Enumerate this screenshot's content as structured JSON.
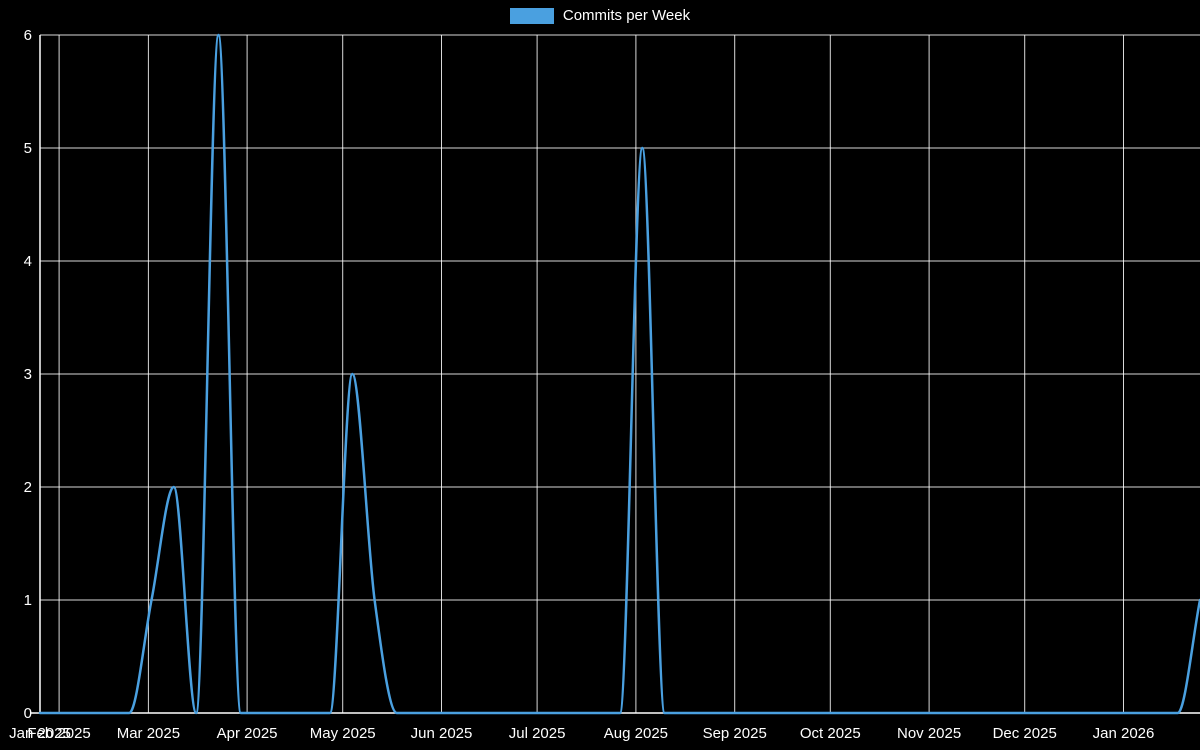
{
  "colors": {
    "background": "#000000",
    "grid": "#ffffff",
    "axis": "#ffffff",
    "text": "#ffffff",
    "line": "#4aa0e0"
  },
  "legend": {
    "label": "Commits per Week",
    "swatch_color": "#4aa0e0",
    "position": "top"
  },
  "chart_data": {
    "type": "line",
    "title": "",
    "legend_entries": [
      "Commits per Week"
    ],
    "xlabel": "",
    "ylabel": "",
    "grid": true,
    "ylim": [
      0,
      6
    ],
    "y_ticks": [
      0,
      1,
      2,
      3,
      4,
      5,
      6
    ],
    "x_start": "2025-01-26",
    "x_end": "2026-01-25",
    "x_ticks": [
      {
        "date": "2025-01-26",
        "label": "Jan 2025"
      },
      {
        "date": "2025-02-01",
        "label": "Feb 2025"
      },
      {
        "date": "2025-03-01",
        "label": "Mar 2025"
      },
      {
        "date": "2025-04-01",
        "label": "Apr 2025"
      },
      {
        "date": "2025-05-01",
        "label": "May 2025"
      },
      {
        "date": "2025-06-01",
        "label": "Jun 2025"
      },
      {
        "date": "2025-07-01",
        "label": "Jul 2025"
      },
      {
        "date": "2025-08-01",
        "label": "Aug 2025"
      },
      {
        "date": "2025-09-01",
        "label": "Sep 2025"
      },
      {
        "date": "2025-10-01",
        "label": "Oct 2025"
      },
      {
        "date": "2025-11-01",
        "label": "Nov 2025"
      },
      {
        "date": "2025-12-01",
        "label": "Dec 2025"
      },
      {
        "date": "2026-01-01",
        "label": "Jan 2026"
      }
    ],
    "series": [
      {
        "name": "Commits per Week",
        "points": [
          {
            "date": "2025-01-26",
            "value": 0
          },
          {
            "date": "2025-02-02",
            "value": 0
          },
          {
            "date": "2025-02-09",
            "value": 0
          },
          {
            "date": "2025-02-16",
            "value": 0
          },
          {
            "date": "2025-02-23",
            "value": 0
          },
          {
            "date": "2025-03-02",
            "value": 1
          },
          {
            "date": "2025-03-09",
            "value": 2
          },
          {
            "date": "2025-03-16",
            "value": 0
          },
          {
            "date": "2025-03-23",
            "value": 6
          },
          {
            "date": "2025-03-30",
            "value": 0
          },
          {
            "date": "2025-04-06",
            "value": 0
          },
          {
            "date": "2025-04-13",
            "value": 0
          },
          {
            "date": "2025-04-20",
            "value": 0
          },
          {
            "date": "2025-04-27",
            "value": 0
          },
          {
            "date": "2025-05-04",
            "value": 3
          },
          {
            "date": "2025-05-11",
            "value": 1
          },
          {
            "date": "2025-05-18",
            "value": 0
          },
          {
            "date": "2025-05-25",
            "value": 0
          },
          {
            "date": "2025-06-01",
            "value": 0
          },
          {
            "date": "2025-06-08",
            "value": 0
          },
          {
            "date": "2025-06-15",
            "value": 0
          },
          {
            "date": "2025-06-22",
            "value": 0
          },
          {
            "date": "2025-06-29",
            "value": 0
          },
          {
            "date": "2025-07-06",
            "value": 0
          },
          {
            "date": "2025-07-13",
            "value": 0
          },
          {
            "date": "2025-07-20",
            "value": 0
          },
          {
            "date": "2025-07-27",
            "value": 0
          },
          {
            "date": "2025-08-03",
            "value": 5
          },
          {
            "date": "2025-08-10",
            "value": 0
          },
          {
            "date": "2025-08-17",
            "value": 0
          },
          {
            "date": "2025-08-24",
            "value": 0
          },
          {
            "date": "2025-08-31",
            "value": 0
          },
          {
            "date": "2025-09-07",
            "value": 0
          },
          {
            "date": "2025-09-14",
            "value": 0
          },
          {
            "date": "2025-09-21",
            "value": 0
          },
          {
            "date": "2025-09-28",
            "value": 0
          },
          {
            "date": "2025-10-05",
            "value": 0
          },
          {
            "date": "2025-10-12",
            "value": 0
          },
          {
            "date": "2025-10-19",
            "value": 0
          },
          {
            "date": "2025-10-26",
            "value": 0
          },
          {
            "date": "2025-11-02",
            "value": 0
          },
          {
            "date": "2025-11-09",
            "value": 0
          },
          {
            "date": "2025-11-16",
            "value": 0
          },
          {
            "date": "2025-11-23",
            "value": 0
          },
          {
            "date": "2025-11-30",
            "value": 0
          },
          {
            "date": "2025-12-07",
            "value": 0
          },
          {
            "date": "2025-12-14",
            "value": 0
          },
          {
            "date": "2025-12-21",
            "value": 0
          },
          {
            "date": "2025-12-28",
            "value": 0
          },
          {
            "date": "2026-01-04",
            "value": 0
          },
          {
            "date": "2026-01-11",
            "value": 0
          },
          {
            "date": "2026-01-18",
            "value": 0
          },
          {
            "date": "2026-01-25",
            "value": 1
          }
        ]
      }
    ]
  }
}
